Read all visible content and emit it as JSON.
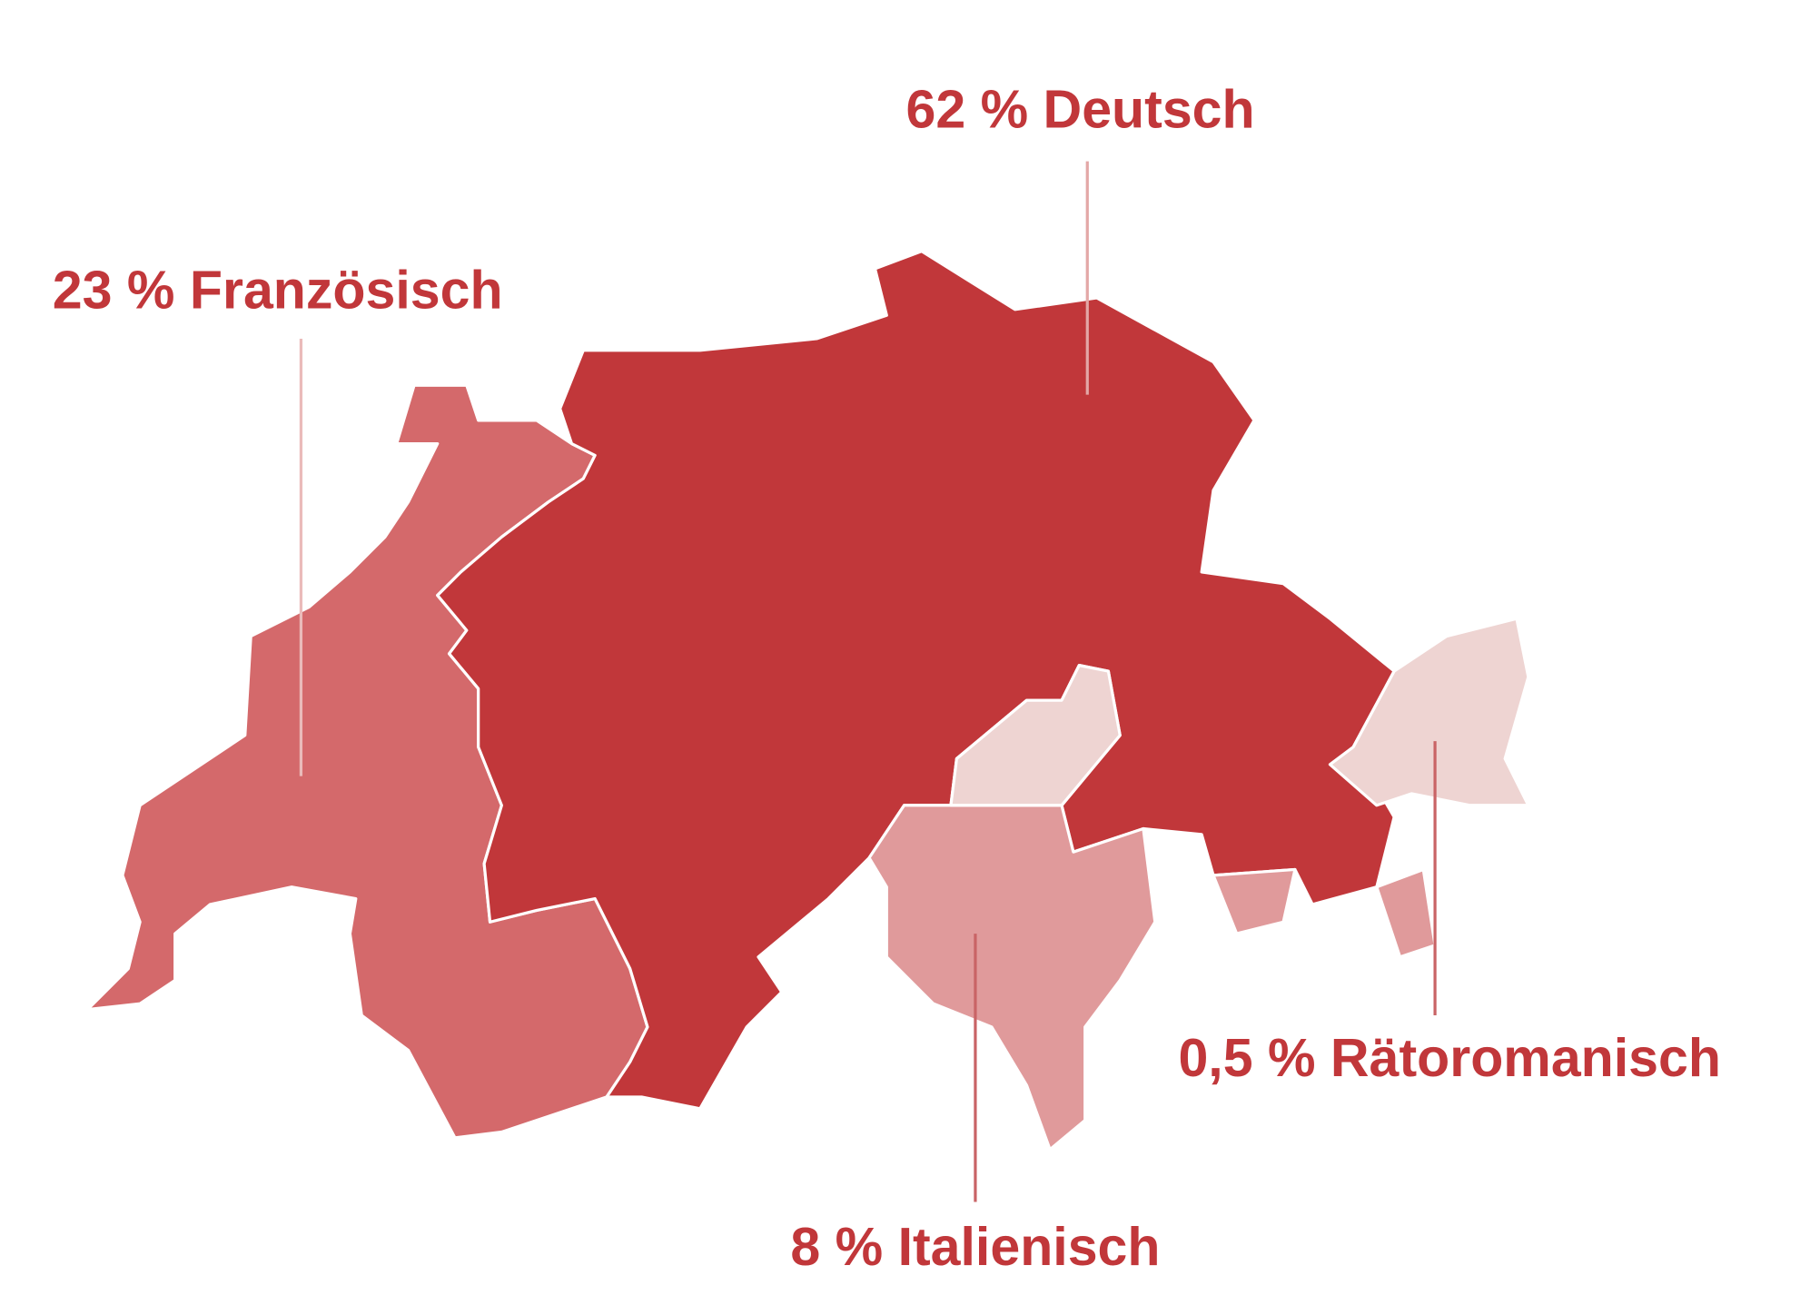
{
  "regions": [
    {
      "label": "62 % Deutsch"
    },
    {
      "label": "23 % Französisch"
    },
    {
      "label": "8 % Italienisch"
    },
    {
      "label": "0,5 % Rätoromanisch"
    }
  ]
}
